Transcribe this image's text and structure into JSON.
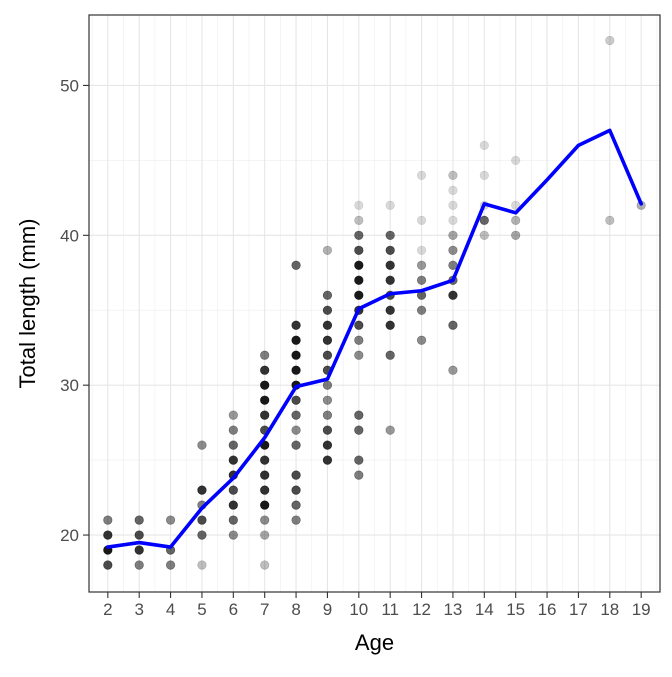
{
  "chart_data": {
    "type": "scatter",
    "title": "",
    "xlabel": "Age",
    "ylabel": "Total length (mm)",
    "xlim": [
      1.4,
      19.6
    ],
    "ylim": [
      16.2,
      54.7
    ],
    "x_ticks": [
      2,
      3,
      4,
      5,
      6,
      7,
      8,
      9,
      10,
      11,
      12,
      13,
      14,
      15,
      16,
      17,
      18,
      19
    ],
    "y_ticks": [
      20,
      30,
      40,
      50
    ],
    "grid": true,
    "point_color": "#000000",
    "line_color": "#0000ff",
    "series": [
      {
        "kind": "points",
        "points": [
          {
            "x": 2,
            "y": 18,
            "a": 0.7
          },
          {
            "x": 2,
            "y": 19,
            "a": 0.9
          },
          {
            "x": 2,
            "y": 20,
            "a": 0.8
          },
          {
            "x": 2,
            "y": 21,
            "a": 0.5
          },
          {
            "x": 3,
            "y": 18,
            "a": 0.5
          },
          {
            "x": 3,
            "y": 19,
            "a": 0.8
          },
          {
            "x": 3,
            "y": 20,
            "a": 0.7
          },
          {
            "x": 3,
            "y": 21,
            "a": 0.6
          },
          {
            "x": 4,
            "y": 18,
            "a": 0.5
          },
          {
            "x": 4,
            "y": 19,
            "a": 0.6
          },
          {
            "x": 4,
            "y": 21,
            "a": 0.45
          },
          {
            "x": 5,
            "y": 18,
            "a": 0.25
          },
          {
            "x": 5,
            "y": 20,
            "a": 0.6
          },
          {
            "x": 5,
            "y": 21,
            "a": 0.7
          },
          {
            "x": 5,
            "y": 22,
            "a": 0.5
          },
          {
            "x": 5,
            "y": 23,
            "a": 0.8
          },
          {
            "x": 5,
            "y": 26,
            "a": 0.45
          },
          {
            "x": 6,
            "y": 20,
            "a": 0.45
          },
          {
            "x": 6,
            "y": 21,
            "a": 0.6
          },
          {
            "x": 6,
            "y": 22,
            "a": 0.8
          },
          {
            "x": 6,
            "y": 23,
            "a": 0.7
          },
          {
            "x": 6,
            "y": 24,
            "a": 0.8
          },
          {
            "x": 6,
            "y": 25,
            "a": 0.8
          },
          {
            "x": 6,
            "y": 26,
            "a": 0.6
          },
          {
            "x": 6,
            "y": 27,
            "a": 0.5
          },
          {
            "x": 6,
            "y": 28,
            "a": 0.4
          },
          {
            "x": 7,
            "y": 18,
            "a": 0.25
          },
          {
            "x": 7,
            "y": 20,
            "a": 0.35
          },
          {
            "x": 7,
            "y": 21,
            "a": 0.45
          },
          {
            "x": 7,
            "y": 22,
            "a": 0.9
          },
          {
            "x": 7,
            "y": 23,
            "a": 0.8
          },
          {
            "x": 7,
            "y": 24,
            "a": 0.8
          },
          {
            "x": 7,
            "y": 25,
            "a": 0.8
          },
          {
            "x": 7,
            "y": 26,
            "a": 0.9
          },
          {
            "x": 7,
            "y": 27,
            "a": 0.7
          },
          {
            "x": 7,
            "y": 28,
            "a": 0.8
          },
          {
            "x": 7,
            "y": 29,
            "a": 0.9
          },
          {
            "x": 7,
            "y": 30,
            "a": 0.9
          },
          {
            "x": 7,
            "y": 31,
            "a": 0.8
          },
          {
            "x": 7,
            "y": 32,
            "a": 0.5
          },
          {
            "x": 8,
            "y": 21,
            "a": 0.5
          },
          {
            "x": 8,
            "y": 22,
            "a": 0.6
          },
          {
            "x": 8,
            "y": 23,
            "a": 0.7
          },
          {
            "x": 8,
            "y": 24,
            "a": 0.7
          },
          {
            "x": 8,
            "y": 26,
            "a": 0.6
          },
          {
            "x": 8,
            "y": 27,
            "a": 0.45
          },
          {
            "x": 8,
            "y": 28,
            "a": 0.6
          },
          {
            "x": 8,
            "y": 29,
            "a": 0.7
          },
          {
            "x": 8,
            "y": 30,
            "a": 0.9
          },
          {
            "x": 8,
            "y": 31,
            "a": 0.9
          },
          {
            "x": 8,
            "y": 32,
            "a": 0.9
          },
          {
            "x": 8,
            "y": 33,
            "a": 0.9
          },
          {
            "x": 8,
            "y": 34,
            "a": 0.8
          },
          {
            "x": 8,
            "y": 38,
            "a": 0.6
          },
          {
            "x": 9,
            "y": 25,
            "a": 0.8
          },
          {
            "x": 9,
            "y": 26,
            "a": 0.8
          },
          {
            "x": 9,
            "y": 27,
            "a": 0.7
          },
          {
            "x": 9,
            "y": 28,
            "a": 0.5
          },
          {
            "x": 9,
            "y": 29,
            "a": 0.45
          },
          {
            "x": 9,
            "y": 30,
            "a": 0.5
          },
          {
            "x": 9,
            "y": 31,
            "a": 0.7
          },
          {
            "x": 9,
            "y": 32,
            "a": 0.7
          },
          {
            "x": 9,
            "y": 33,
            "a": 0.8
          },
          {
            "x": 9,
            "y": 34,
            "a": 0.8
          },
          {
            "x": 9,
            "y": 35,
            "a": 0.7
          },
          {
            "x": 9,
            "y": 36,
            "a": 0.6
          },
          {
            "x": 9,
            "y": 39,
            "a": 0.3
          },
          {
            "x": 10,
            "y": 24,
            "a": 0.5
          },
          {
            "x": 10,
            "y": 25,
            "a": 0.6
          },
          {
            "x": 10,
            "y": 27,
            "a": 0.6
          },
          {
            "x": 10,
            "y": 28,
            "a": 0.6
          },
          {
            "x": 10,
            "y": 32,
            "a": 0.45
          },
          {
            "x": 10,
            "y": 33,
            "a": 0.5
          },
          {
            "x": 10,
            "y": 34,
            "a": 0.7
          },
          {
            "x": 10,
            "y": 35,
            "a": 0.8
          },
          {
            "x": 10,
            "y": 36,
            "a": 0.9
          },
          {
            "x": 10,
            "y": 37,
            "a": 0.9
          },
          {
            "x": 10,
            "y": 38,
            "a": 0.9
          },
          {
            "x": 10,
            "y": 39,
            "a": 0.7
          },
          {
            "x": 10,
            "y": 40,
            "a": 0.6
          },
          {
            "x": 10,
            "y": 41,
            "a": 0.25
          },
          {
            "x": 10,
            "y": 42,
            "a": 0.15
          },
          {
            "x": 11,
            "y": 27,
            "a": 0.4
          },
          {
            "x": 11,
            "y": 32,
            "a": 0.6
          },
          {
            "x": 11,
            "y": 34,
            "a": 0.8
          },
          {
            "x": 11,
            "y": 35,
            "a": 0.8
          },
          {
            "x": 11,
            "y": 36,
            "a": 0.7
          },
          {
            "x": 11,
            "y": 37,
            "a": 0.8
          },
          {
            "x": 11,
            "y": 38,
            "a": 0.8
          },
          {
            "x": 11,
            "y": 39,
            "a": 0.7
          },
          {
            "x": 11,
            "y": 40,
            "a": 0.6
          },
          {
            "x": 11,
            "y": 42,
            "a": 0.15
          },
          {
            "x": 12,
            "y": 33,
            "a": 0.45
          },
          {
            "x": 12,
            "y": 35,
            "a": 0.5
          },
          {
            "x": 12,
            "y": 36,
            "a": 0.6
          },
          {
            "x": 12,
            "y": 37,
            "a": 0.5
          },
          {
            "x": 12,
            "y": 38,
            "a": 0.4
          },
          {
            "x": 12,
            "y": 39,
            "a": 0.15
          },
          {
            "x": 12,
            "y": 41,
            "a": 0.15
          },
          {
            "x": 12,
            "y": 44,
            "a": 0.15
          },
          {
            "x": 13,
            "y": 31,
            "a": 0.4
          },
          {
            "x": 13,
            "y": 34,
            "a": 0.6
          },
          {
            "x": 13,
            "y": 36,
            "a": 0.8
          },
          {
            "x": 13,
            "y": 37,
            "a": 0.6
          },
          {
            "x": 13,
            "y": 38,
            "a": 0.5
          },
          {
            "x": 13,
            "y": 39,
            "a": 0.45
          },
          {
            "x": 13,
            "y": 40,
            "a": 0.35
          },
          {
            "x": 13,
            "y": 41,
            "a": 0.15
          },
          {
            "x": 13,
            "y": 42,
            "a": 0.15
          },
          {
            "x": 13,
            "y": 43,
            "a": 0.15
          },
          {
            "x": 13,
            "y": 44,
            "a": 0.25
          },
          {
            "x": 14,
            "y": 40,
            "a": 0.25
          },
          {
            "x": 14,
            "y": 41,
            "a": 0.6
          },
          {
            "x": 14,
            "y": 42,
            "a": 0.15
          },
          {
            "x": 14,
            "y": 44,
            "a": 0.15
          },
          {
            "x": 14,
            "y": 46,
            "a": 0.15
          },
          {
            "x": 15,
            "y": 40,
            "a": 0.35
          },
          {
            "x": 15,
            "y": 41,
            "a": 0.3
          },
          {
            "x": 15,
            "y": 42,
            "a": 0.15
          },
          {
            "x": 15,
            "y": 45,
            "a": 0.15
          },
          {
            "x": 18,
            "y": 41,
            "a": 0.25
          },
          {
            "x": 18,
            "y": 53,
            "a": 0.2
          },
          {
            "x": 19,
            "y": 42,
            "a": 0.3
          }
        ]
      },
      {
        "kind": "line",
        "x": [
          2,
          3,
          4,
          5,
          6,
          7,
          8,
          9,
          10,
          11,
          12,
          13,
          14,
          15,
          16,
          17,
          18,
          19
        ],
        "y": [
          19.2,
          19.5,
          19.2,
          21.8,
          23.8,
          26.5,
          29.9,
          30.4,
          35.1,
          36.1,
          36.3,
          37.0,
          42.1,
          41.5,
          43.7,
          46.0,
          47.0,
          42.1
        ]
      }
    ]
  }
}
